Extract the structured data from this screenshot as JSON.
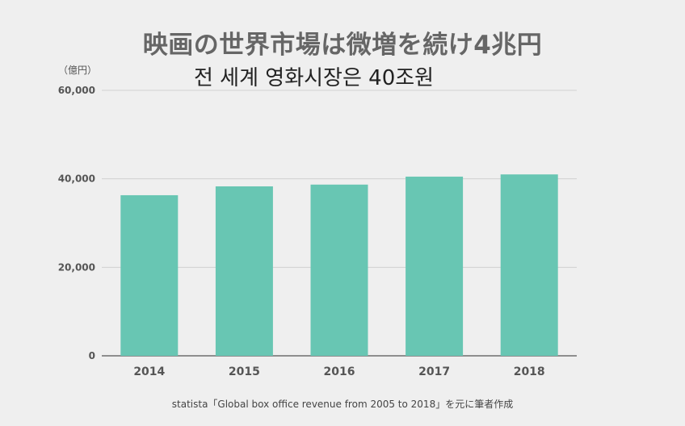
{
  "header": {
    "title": "映画の世界市場は微増を続け4兆円",
    "subtitle": "전 세계 영화시장은 40조원"
  },
  "source": "statista「Global box office revenue from 2005 to 2018」を元に筆者作成",
  "colors": {
    "bar": "#68c6b3",
    "grid": "#d0d0d0",
    "axis": "#555555",
    "background": "#efefef"
  },
  "chart_data": {
    "type": "bar",
    "title": "映画の世界市場は微増を続け4兆円",
    "subtitle": "전 세계 영화시장은 40조원",
    "unit_label": "（億円）",
    "categories": [
      "2014",
      "2015",
      "2016",
      "2017",
      "2018"
    ],
    "values": [
      36300,
      38300,
      38700,
      40500,
      41000
    ],
    "ylim": [
      0,
      60000
    ],
    "yticks": [
      0,
      20000,
      40000,
      60000
    ],
    "ytick_labels": [
      "0",
      "20,000",
      "40,000",
      "60,000"
    ],
    "grid": true,
    "legend": "none"
  }
}
